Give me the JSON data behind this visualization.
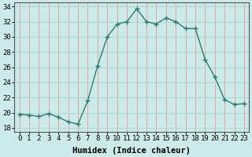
{
  "x": [
    0,
    1,
    2,
    3,
    4,
    5,
    6,
    7,
    8,
    9,
    10,
    11,
    12,
    13,
    14,
    15,
    16,
    17,
    18,
    19,
    20,
    21,
    22,
    23
  ],
  "y": [
    19.8,
    19.7,
    19.5,
    19.9,
    19.4,
    18.8,
    18.5,
    21.6,
    26.2,
    30.0,
    31.7,
    32.0,
    33.7,
    32.0,
    31.7,
    32.5,
    32.0,
    31.1,
    31.1,
    27.0,
    24.7,
    21.7,
    21.1,
    21.2
  ],
  "line_color": "#2d7a6e",
  "marker": "+",
  "marker_size": 4,
  "bg_color": "#cceae8",
  "grid_color_h": "#a8d8d4",
  "grid_color_v": "#e8a0a0",
  "xlabel": "Humidex (Indice chaleur)",
  "ylim": [
    17.5,
    34.5
  ],
  "yticks": [
    18,
    20,
    22,
    24,
    26,
    28,
    30,
    32,
    34
  ],
  "xticks": [
    0,
    1,
    2,
    3,
    4,
    5,
    6,
    7,
    8,
    9,
    10,
    11,
    12,
    13,
    14,
    15,
    16,
    17,
    18,
    19,
    20,
    21,
    22,
    23
  ],
  "xlabel_fontsize": 7.5,
  "tick_fontsize": 6.5
}
